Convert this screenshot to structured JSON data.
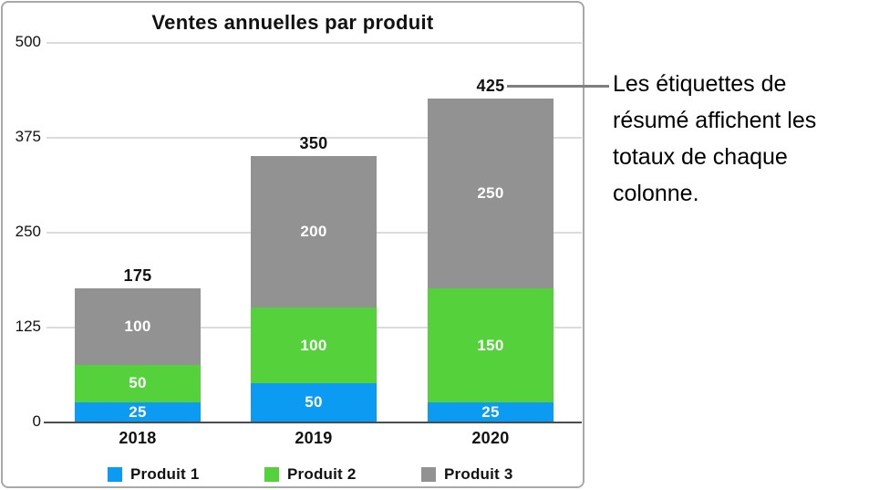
{
  "chart_data": {
    "type": "bar",
    "stacked": true,
    "title": "Ventes annuelles par produit",
    "categories": [
      "2018",
      "2019",
      "2020"
    ],
    "series": [
      {
        "name": "Produit 1",
        "color": "#0c9bf2",
        "values": [
          25,
          50,
          25
        ]
      },
      {
        "name": "Produit 2",
        "color": "#55d13b",
        "values": [
          50,
          100,
          150
        ]
      },
      {
        "name": "Produit 3",
        "color": "#929292",
        "values": [
          100,
          200,
          250
        ]
      }
    ],
    "totals": [
      175,
      350,
      425
    ],
    "y_ticks": [
      0,
      125,
      250,
      375,
      500
    ],
    "ylim": [
      0,
      500
    ],
    "xlabel": "",
    "ylabel": "",
    "grid": true,
    "legend_position": "bottom"
  },
  "callout": {
    "text": "Les étiquettes de résumé affichent les totaux de chaque colonne."
  }
}
